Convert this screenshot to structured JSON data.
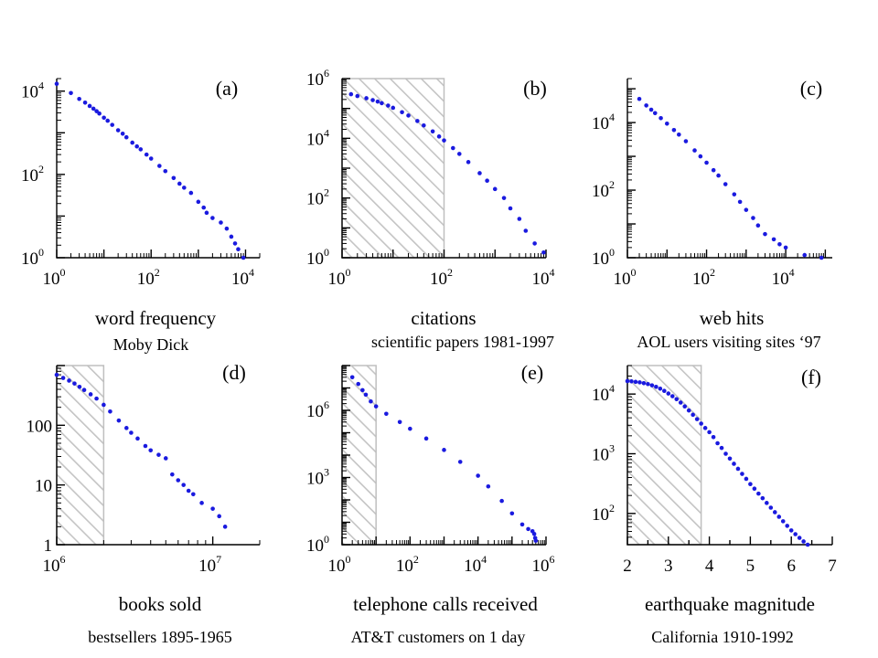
{
  "chart_data": [
    {
      "type": "scatter",
      "panel": "(a)",
      "xlabel": "word frequency",
      "caption": "Moby Dick",
      "xscale": "log",
      "yscale": "log",
      "xlim": [
        1,
        20000
      ],
      "ylim": [
        1,
        20000
      ],
      "xticks": [
        {
          "base": "10",
          "exp": "0",
          "value": 1
        },
        {
          "base": "10",
          "exp": "2",
          "value": 100
        },
        {
          "base": "10",
          "exp": "4",
          "value": 10000
        }
      ],
      "yticks": [
        {
          "base": "10",
          "exp": "0",
          "value": 1
        },
        {
          "base": "10",
          "exp": "2",
          "value": 100
        },
        {
          "base": "10",
          "exp": "4",
          "value": 10000
        }
      ],
      "shaded_x": null,
      "color": "#1a1adf",
      "x": [
        1,
        2,
        3,
        4,
        5,
        6,
        7,
        8,
        10,
        12,
        15,
        20,
        25,
        30,
        40,
        50,
        60,
        80,
        100,
        150,
        200,
        300,
        400,
        500,
        700,
        1000,
        1300,
        1500,
        2000,
        3000,
        4000,
        5000,
        6000,
        7000,
        9000
      ],
      "y": [
        15000,
        9000,
        6500,
        5300,
        4400,
        3800,
        3300,
        2900,
        2300,
        1950,
        1550,
        1150,
        950,
        780,
        580,
        470,
        400,
        300,
        240,
        160,
        120,
        82,
        60,
        48,
        36,
        22,
        16,
        12,
        9,
        7,
        5,
        3.2,
        2.2,
        1.6,
        1
      ]
    },
    {
      "type": "scatter",
      "panel": "(b)",
      "xlabel": "citations",
      "caption": "scientific papers 1981-1997",
      "xscale": "log",
      "yscale": "log",
      "xlim": [
        1,
        10000
      ],
      "ylim": [
        1,
        1000000
      ],
      "xticks": [
        {
          "base": "10",
          "exp": "0",
          "value": 1
        },
        {
          "base": "10",
          "exp": "2",
          "value": 100
        },
        {
          "base": "10",
          "exp": "4",
          "value": 10000
        }
      ],
      "yticks": [
        {
          "base": "10",
          "exp": "0",
          "value": 1
        },
        {
          "base": "10",
          "exp": "2",
          "value": 100
        },
        {
          "base": "10",
          "exp": "4",
          "value": 10000
        },
        {
          "base": "10",
          "exp": "6",
          "value": 1000000
        }
      ],
      "shaded_x": [
        1,
        100
      ],
      "color": "#1a1adf",
      "x": [
        1.5,
        2,
        3,
        4,
        5,
        6,
        8,
        10,
        15,
        20,
        30,
        40,
        60,
        80,
        100,
        150,
        200,
        300,
        500,
        700,
        1000,
        1500,
        2000,
        3000,
        4000,
        6000,
        9000
      ],
      "y": [
        300000,
        260000,
        220000,
        190000,
        170000,
        150000,
        125000,
        105000,
        75000,
        58000,
        38000,
        27000,
        17000,
        11500,
        8500,
        4700,
        3000,
        1600,
        680,
        380,
        200,
        100,
        45,
        20,
        8,
        3,
        1.5
      ]
    },
    {
      "type": "scatter",
      "panel": "(c)",
      "xlabel": "web hits",
      "caption": "AOL users visiting sites ‘97",
      "xscale": "log",
      "yscale": "log",
      "xlim": [
        1,
        150000
      ],
      "ylim": [
        1,
        200000
      ],
      "xticks": [
        {
          "base": "10",
          "exp": "0",
          "value": 1
        },
        {
          "base": "10",
          "exp": "2",
          "value": 100
        },
        {
          "base": "10",
          "exp": "4",
          "value": 10000
        }
      ],
      "yticks": [
        {
          "base": "10",
          "exp": "0",
          "value": 1
        },
        {
          "base": "10",
          "exp": "2",
          "value": 100
        },
        {
          "base": "10",
          "exp": "4",
          "value": 10000
        }
      ],
      "shaded_x": null,
      "color": "#1a1adf",
      "x": [
        2,
        3,
        4,
        5,
        7,
        10,
        15,
        20,
        30,
        50,
        70,
        100,
        150,
        200,
        300,
        500,
        700,
        1000,
        1500,
        2000,
        3000,
        5000,
        7000,
        10000,
        30000,
        80000
      ],
      "y": [
        50000,
        32000,
        24000,
        19000,
        13500,
        9300,
        6000,
        4400,
        2800,
        1500,
        1000,
        650,
        390,
        270,
        150,
        75,
        45,
        26,
        15,
        9,
        5,
        3.5,
        2.5,
        2,
        1.2,
        1
      ]
    },
    {
      "type": "scatter",
      "panel": "(d)",
      "xlabel": "books sold",
      "caption": "bestsellers 1895-1965",
      "xscale": "log",
      "yscale": "log",
      "xlim": [
        1000000,
        20000000
      ],
      "ylim": [
        1,
        1000
      ],
      "xticks": [
        {
          "base": "10",
          "exp": "6",
          "value": 1000000
        },
        {
          "base": "10",
          "exp": "7",
          "value": 10000000
        }
      ],
      "yticks": [
        {
          "base": "1",
          "exp": "",
          "value": 1
        },
        {
          "base": "10",
          "exp": "",
          "value": 10
        },
        {
          "base": "100",
          "exp": "",
          "value": 100
        }
      ],
      "shaded_x": [
        1000000,
        2000000
      ],
      "color": "#1a1adf",
      "x": [
        1000000,
        1100000,
        1200000,
        1300000,
        1400000,
        1500000,
        1650000,
        1800000,
        2000000,
        2200000,
        2500000,
        2800000,
        3000000,
        3300000,
        3700000,
        4000000,
        4500000,
        5000000,
        5500000,
        6000000,
        6500000,
        7000000,
        7500000,
        8500000,
        10000000,
        11000000,
        12000000
      ],
      "y": [
        700,
        620,
        560,
        500,
        440,
        390,
        330,
        280,
        220,
        170,
        120,
        90,
        75,
        60,
        45,
        38,
        32,
        28,
        15,
        12,
        10,
        8,
        7,
        5,
        4,
        3,
        2
      ]
    },
    {
      "type": "scatter",
      "panel": "(e)",
      "xlabel": "telephone calls received",
      "caption": "AT&T customers on 1 day",
      "xscale": "log",
      "yscale": "log",
      "xlim": [
        1,
        1000000
      ],
      "ylim": [
        1,
        100000000
      ],
      "xticks": [
        {
          "base": "10",
          "exp": "0",
          "value": 1
        },
        {
          "base": "10",
          "exp": "2",
          "value": 100
        },
        {
          "base": "10",
          "exp": "4",
          "value": 10000
        },
        {
          "base": "10",
          "exp": "6",
          "value": 1000000
        }
      ],
      "yticks": [
        {
          "base": "10",
          "exp": "0",
          "value": 1
        },
        {
          "base": "10",
          "exp": "3",
          "value": 1000
        },
        {
          "base": "10",
          "exp": "6",
          "value": 1000000
        }
      ],
      "shaded_x": [
        1,
        10
      ],
      "color": "#1a1adf",
      "x": [
        2,
        3,
        4,
        5,
        7,
        10,
        20,
        50,
        100,
        300,
        1000,
        3000,
        10000,
        20000,
        50000,
        100000,
        200000,
        300000,
        400000,
        450000,
        480000,
        500000
      ],
      "y": [
        30000000,
        15000000,
        8000000,
        5000000,
        2500000,
        1500000,
        700000,
        300000,
        150000,
        55000,
        17000,
        5000,
        1200,
        400,
        90,
        25,
        8,
        5,
        4,
        3,
        2,
        1.5
      ]
    },
    {
      "type": "scatter",
      "panel": "(f)",
      "xlabel": "earthquake magnitude",
      "caption": "California 1910-1992",
      "xscale": "linear",
      "yscale": "log",
      "xlim": [
        2,
        7
      ],
      "ylim": [
        30,
        30000
      ],
      "xticks": [
        {
          "base": "2",
          "exp": "",
          "value": 2
        },
        {
          "base": "3",
          "exp": "",
          "value": 3
        },
        {
          "base": "4",
          "exp": "",
          "value": 4
        },
        {
          "base": "5",
          "exp": "",
          "value": 5
        },
        {
          "base": "6",
          "exp": "",
          "value": 6
        },
        {
          "base": "7",
          "exp": "",
          "value": 7
        }
      ],
      "yticks": [
        {
          "base": "10",
          "exp": "2",
          "value": 100
        },
        {
          "base": "10",
          "exp": "3",
          "value": 1000
        },
        {
          "base": "10",
          "exp": "4",
          "value": 10000
        }
      ],
      "shaded_x": [
        2,
        3.8
      ],
      "color": "#1a1adf",
      "x": [
        2.0,
        2.1,
        2.2,
        2.3,
        2.4,
        2.5,
        2.6,
        2.7,
        2.8,
        2.9,
        3.0,
        3.1,
        3.2,
        3.3,
        3.4,
        3.5,
        3.6,
        3.7,
        3.8,
        3.9,
        4.0,
        4.1,
        4.2,
        4.3,
        4.4,
        4.5,
        4.6,
        4.7,
        4.8,
        4.9,
        5.0,
        5.1,
        5.2,
        5.3,
        5.4,
        5.5,
        5.6,
        5.7,
        5.8,
        5.9,
        6.0,
        6.1,
        6.2,
        6.3,
        6.4,
        6.5
      ],
      "y": [
        16500,
        16300,
        16000,
        15700,
        15200,
        14700,
        14000,
        13200,
        12300,
        11300,
        10200,
        9200,
        8200,
        7200,
        6200,
        5300,
        4500,
        3800,
        3200,
        2700,
        2300,
        1900,
        1500,
        1250,
        1000,
        830,
        680,
        560,
        460,
        380,
        310,
        260,
        215,
        180,
        150,
        125,
        105,
        88,
        74,
        62,
        52,
        45,
        39,
        34,
        30,
        27
      ]
    }
  ]
}
